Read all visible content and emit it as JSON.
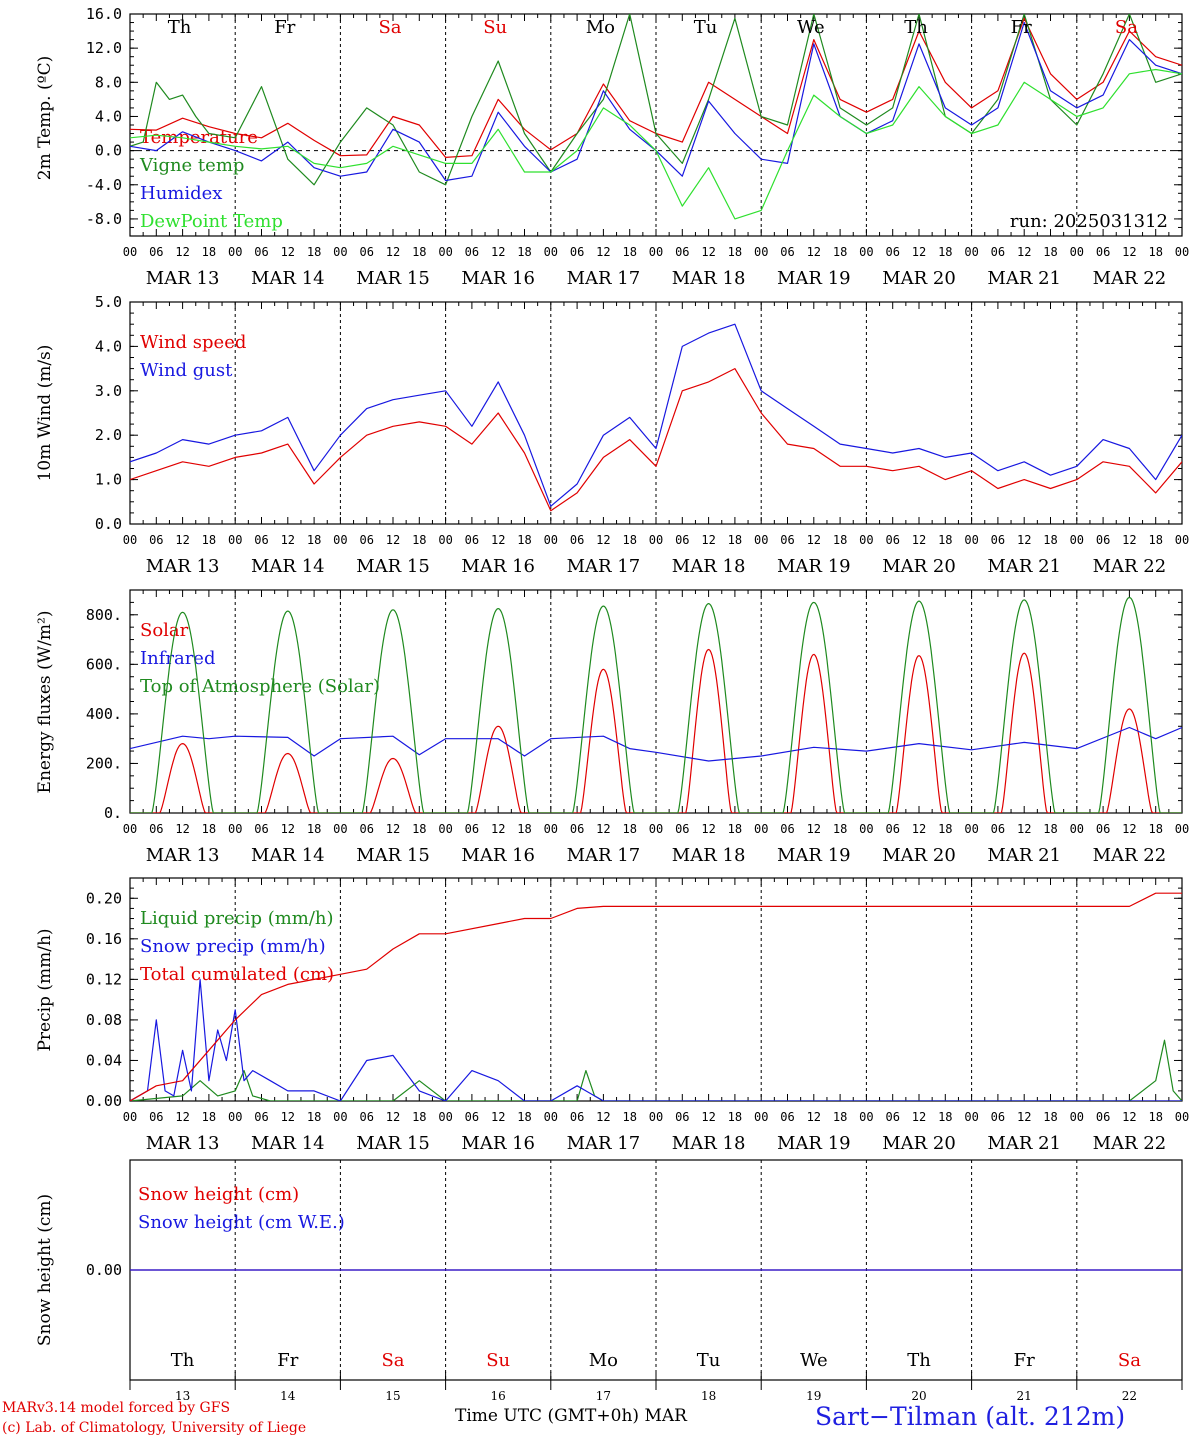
{
  "station": "Sart−Tilman (alt. 212m)",
  "footer_line1": "MARv3.14 model forced by GFS",
  "footer_line2": "(c) Lab. of Climatology, University of Liege",
  "x_axis_title": "Time UTC (GMT+0h)",
  "x_axis_month": "MAR",
  "run_label": "run: 2025031312",
  "hour_ticks": [
    "00",
    "06",
    "12",
    "18"
  ],
  "date_labels": [
    "MAR 13",
    "MAR 14",
    "MAR 15",
    "MAR 16",
    "MAR 17",
    "MAR 18",
    "MAR 19",
    "MAR 20",
    "MAR 21",
    "MAR 22"
  ],
  "day_numbers": [
    "13",
    "14",
    "15",
    "16",
    "17",
    "18",
    "19",
    "20",
    "21",
    "22"
  ],
  "day_names": [
    "Th",
    "Fr",
    "Sa",
    "Su",
    "Mo",
    "Tu",
    "We",
    "Th",
    "Fr",
    "Sa"
  ],
  "day_colors": [
    "#000000",
    "#000000",
    "#e00000",
    "#e00000",
    "#000000",
    "#000000",
    "#000000",
    "#000000",
    "#000000",
    "#e00000"
  ],
  "colors": {
    "red": "#e00000",
    "blue": "#1818e0",
    "green": "#1f8a1f",
    "lightgreen": "#2fe02f"
  },
  "chart_data": [
    {
      "type": "line",
      "ylabel": "2m Temp. (ºC)",
      "ylim": [
        -10,
        16
      ],
      "yticks": [
        "-8.0",
        "-4.0",
        "0.0",
        "4.0",
        "8.0",
        "12.0",
        "16.0"
      ],
      "x_unit": "hours since MAR 13 00 UTC",
      "series": [
        {
          "name": "Temperature",
          "color": "#e00000",
          "x": [
            0,
            6,
            12,
            18,
            24,
            30,
            36,
            42,
            48,
            54,
            60,
            66,
            72,
            78,
            84,
            90,
            96,
            102,
            108,
            114,
            120,
            126,
            132,
            138,
            144,
            150,
            156,
            162,
            168,
            174,
            180,
            186,
            192,
            198,
            204,
            210,
            216,
            222,
            228,
            234,
            240
          ],
          "y": [
            2.5,
            2.4,
            3.8,
            2.8,
            2.0,
            1.5,
            3.2,
            1.2,
            -0.6,
            -0.5,
            4.0,
            3.0,
            -0.8,
            -0.6,
            6.0,
            2.5,
            0.1,
            2.0,
            7.8,
            3.5,
            2.0,
            1.0,
            8.0,
            6.0,
            4.0,
            2.0,
            13.0,
            6.0,
            4.5,
            6.0,
            14.0,
            8.0,
            5.0,
            7.0,
            15.5,
            9.0,
            6.0,
            8.0,
            14.0,
            11.0,
            10.0
          ]
        },
        {
          "name": "Vigne temp",
          "color": "#1f8a1f",
          "x": [
            0,
            3,
            6,
            9,
            12,
            15,
            18,
            24,
            30,
            36,
            42,
            48,
            54,
            60,
            66,
            72,
            78,
            84,
            90,
            96,
            102,
            108,
            114,
            120,
            126,
            132,
            138,
            144,
            150,
            156,
            162,
            168,
            174,
            180,
            186,
            192,
            198,
            204,
            210,
            216,
            222,
            228,
            234,
            240
          ],
          "y": [
            0.5,
            1.0,
            8.0,
            6.0,
            6.5,
            4.0,
            2.0,
            1.5,
            7.5,
            -1.0,
            -4.0,
            1.0,
            5.0,
            3.0,
            -2.5,
            -4.0,
            4.0,
            10.5,
            2.0,
            -2.5,
            2.0,
            6.0,
            16.0,
            2.0,
            -1.5,
            6.0,
            15.5,
            4.0,
            3.0,
            16.0,
            5.0,
            3.0,
            5.0,
            16.0,
            4.0,
            2.0,
            6.0,
            16.0,
            6.0,
            3.0,
            9.0,
            16.0,
            8.0,
            9.0
          ]
        },
        {
          "name": "Humidex",
          "color": "#1818e0",
          "x": [
            0,
            6,
            12,
            18,
            24,
            30,
            36,
            42,
            48,
            54,
            60,
            66,
            72,
            78,
            84,
            90,
            96,
            102,
            108,
            114,
            120,
            126,
            132,
            138,
            144,
            150,
            156,
            162,
            168,
            174,
            180,
            186,
            192,
            198,
            204,
            210,
            216,
            222,
            228,
            234,
            240
          ],
          "y": [
            0.5,
            0.0,
            2.2,
            1.0,
            0.0,
            -1.2,
            1.0,
            -2.0,
            -3.0,
            -2.5,
            2.5,
            1.0,
            -3.5,
            -3.0,
            4.5,
            0.5,
            -2.5,
            -1.0,
            7.0,
            2.5,
            0.0,
            -3.0,
            5.8,
            2.0,
            -1.0,
            -1.5,
            12.5,
            4.0,
            2.0,
            3.5,
            12.5,
            5.0,
            3.0,
            5.0,
            15.0,
            7.0,
            5.0,
            6.5,
            13.0,
            10.0,
            9.0
          ]
        },
        {
          "name": "DewPoint Temp",
          "color": "#2fe02f",
          "x": [
            0,
            6,
            12,
            18,
            24,
            30,
            36,
            42,
            48,
            54,
            60,
            66,
            72,
            78,
            84,
            90,
            96,
            102,
            108,
            114,
            120,
            126,
            132,
            138,
            144,
            150,
            156,
            162,
            168,
            174,
            180,
            186,
            192,
            198,
            204,
            210,
            216,
            222,
            228,
            234,
            240
          ],
          "y": [
            1.5,
            1.8,
            1.5,
            1.0,
            0.5,
            0.2,
            0.5,
            -1.5,
            -2.0,
            -1.5,
            0.5,
            -0.5,
            -1.5,
            -1.5,
            2.5,
            -2.5,
            -2.5,
            0.0,
            5.0,
            3.0,
            0.0,
            -6.5,
            -2.0,
            -8.0,
            -7.0,
            0.0,
            6.5,
            4.0,
            2.0,
            3.0,
            7.5,
            4.0,
            2.0,
            3.0,
            8.0,
            6.0,
            4.0,
            5.0,
            9.0,
            9.5,
            9.0
          ]
        }
      ]
    },
    {
      "type": "line",
      "ylabel": "10m Wind (m/s)",
      "ylim": [
        0,
        5
      ],
      "yticks": [
        "0.0",
        "1.0",
        "2.0",
        "3.0",
        "4.0",
        "5.0"
      ],
      "series": [
        {
          "name": "Wind speed",
          "color": "#e00000",
          "x": [
            0,
            6,
            12,
            18,
            24,
            30,
            36,
            42,
            48,
            54,
            60,
            66,
            72,
            78,
            84,
            90,
            96,
            102,
            108,
            114,
            120,
            126,
            132,
            138,
            144,
            150,
            156,
            162,
            168,
            174,
            180,
            186,
            192,
            198,
            204,
            210,
            216,
            222,
            228,
            234,
            240
          ],
          "y": [
            1.0,
            1.2,
            1.4,
            1.3,
            1.5,
            1.6,
            1.8,
            0.9,
            1.5,
            2.0,
            2.2,
            2.3,
            2.2,
            1.8,
            2.5,
            1.6,
            0.3,
            0.7,
            1.5,
            1.9,
            1.3,
            3.0,
            3.2,
            3.5,
            2.5,
            1.8,
            1.7,
            1.3,
            1.3,
            1.2,
            1.3,
            1.0,
            1.2,
            0.8,
            1.0,
            0.8,
            1.0,
            1.4,
            1.3,
            0.7,
            1.4
          ]
        },
        {
          "name": "Wind gust",
          "color": "#1818e0",
          "x": [
            0,
            6,
            12,
            18,
            24,
            30,
            36,
            42,
            48,
            54,
            60,
            66,
            72,
            78,
            84,
            90,
            96,
            102,
            108,
            114,
            120,
            126,
            132,
            138,
            144,
            150,
            156,
            162,
            168,
            174,
            180,
            186,
            192,
            198,
            204,
            210,
            216,
            222,
            228,
            234,
            240
          ],
          "y": [
            1.4,
            1.6,
            1.9,
            1.8,
            2.0,
            2.1,
            2.4,
            1.2,
            2.0,
            2.6,
            2.8,
            2.9,
            3.0,
            2.2,
            3.2,
            2.0,
            0.4,
            0.9,
            2.0,
            2.4,
            1.7,
            4.0,
            4.3,
            4.5,
            3.0,
            2.6,
            2.2,
            1.8,
            1.7,
            1.6,
            1.7,
            1.5,
            1.6,
            1.2,
            1.4,
            1.1,
            1.3,
            1.9,
            1.7,
            1.0,
            2.0
          ]
        }
      ]
    },
    {
      "type": "line",
      "ylabel": "Energy fluxes (W/m²)",
      "ylim": [
        0,
        900
      ],
      "yticks": [
        "0.",
        "200.",
        "400.",
        "600.",
        "800."
      ],
      "series": [
        {
          "name": "Solar",
          "color": "#e00000",
          "daily_peaks": [
            280,
            240,
            220,
            350,
            580,
            660,
            640,
            635,
            645,
            420
          ]
        },
        {
          "name": "Infrared",
          "color": "#1818e0",
          "x": [
            0,
            12,
            18,
            24,
            36,
            42,
            48,
            60,
            66,
            72,
            84,
            90,
            96,
            108,
            114,
            120,
            132,
            144,
            156,
            168,
            180,
            192,
            204,
            216,
            228,
            234,
            240
          ],
          "y": [
            260,
            310,
            300,
            310,
            305,
            230,
            300,
            310,
            235,
            300,
            300,
            230,
            300,
            310,
            260,
            245,
            210,
            230,
            265,
            250,
            280,
            255,
            285,
            260,
            345,
            300,
            345
          ]
        },
        {
          "name": "Top of Atmosphere (Solar)",
          "color": "#1f8a1f",
          "daily_peaks": [
            810,
            815,
            820,
            825,
            835,
            845,
            850,
            855,
            860,
            870
          ]
        }
      ]
    },
    {
      "type": "line",
      "ylabel": "Precip (mm/h)",
      "ylim": [
        0,
        0.22
      ],
      "yticks": [
        "0.00",
        "0.04",
        "0.08",
        "0.12",
        "0.16",
        "0.20"
      ],
      "series": [
        {
          "name": "Liquid precip (mm/h)",
          "color": "#1f8a1f",
          "x": [
            0,
            12,
            16,
            20,
            24,
            26,
            28,
            32,
            60,
            66,
            72,
            102,
            104,
            106,
            108,
            228,
            234,
            236,
            238,
            240
          ],
          "y": [
            0,
            0.005,
            0.02,
            0.005,
            0.01,
            0.03,
            0.005,
            0,
            0,
            0.02,
            0,
            0,
            0.03,
            0.005,
            0,
            0,
            0.02,
            0.06,
            0.01,
            0
          ]
        },
        {
          "name": "Snow precip (mm/h)",
          "color": "#1818e0",
          "x": [
            0,
            4,
            6,
            8,
            10,
            12,
            14,
            16,
            18,
            20,
            22,
            24,
            26,
            28,
            32,
            36,
            42,
            48,
            54,
            60,
            66,
            72,
            78,
            84,
            90,
            96,
            102,
            104,
            108,
            114,
            240
          ],
          "y": [
            0,
            0.01,
            0.08,
            0.01,
            0.005,
            0.05,
            0.01,
            0.12,
            0.02,
            0.07,
            0.04,
            0.09,
            0.02,
            0.03,
            0.02,
            0.01,
            0.01,
            0.0,
            0.04,
            0.045,
            0.01,
            0,
            0.03,
            0.02,
            0.0,
            0.0,
            0.015,
            0.01,
            0.0,
            0,
            0
          ]
        },
        {
          "name": "Total cumulated (cm)",
          "color": "#e00000",
          "x": [
            0,
            6,
            12,
            18,
            24,
            30,
            36,
            42,
            48,
            54,
            60,
            66,
            72,
            84,
            90,
            96,
            102,
            108,
            120,
            228,
            234,
            240
          ],
          "y": [
            0,
            0.015,
            0.02,
            0.05,
            0.08,
            0.105,
            0.115,
            0.12,
            0.125,
            0.13,
            0.15,
            0.165,
            0.165,
            0.175,
            0.18,
            0.18,
            0.19,
            0.192,
            0.192,
            0.192,
            0.205,
            0.205
          ]
        }
      ]
    },
    {
      "type": "line",
      "ylabel": "Snow height (cm)",
      "yticks": [
        "0.00"
      ],
      "series": [
        {
          "name": "Snow height (cm)",
          "color": "#e00000",
          "x": [
            0,
            240
          ],
          "y": [
            0,
            0
          ]
        },
        {
          "name": "Snow height (cm W.E.)",
          "color": "#1818e0",
          "x": [
            0,
            240
          ],
          "y": [
            0,
            0
          ]
        }
      ]
    }
  ]
}
